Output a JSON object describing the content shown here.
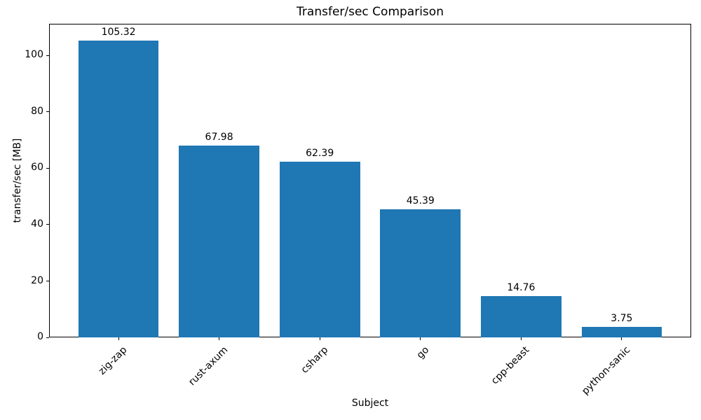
{
  "chart_data": {
    "type": "bar",
    "title": "Transfer/sec Comparison",
    "xlabel": "Subject",
    "ylabel": "transfer/sec [MB]",
    "categories": [
      "zig-zap",
      "rust-axum",
      "csharp",
      "go",
      "cpp-beast",
      "python-sanic"
    ],
    "values": [
      105.32,
      67.98,
      62.39,
      45.39,
      14.76,
      3.75
    ],
    "bar_labels": [
      "105.32",
      "67.98",
      "62.39",
      "45.39",
      "14.76",
      "3.75"
    ],
    "yticks": [
      0,
      20,
      40,
      60,
      80,
      100
    ],
    "ylim": [
      0,
      111.25
    ],
    "xtick_rotation_deg": 45,
    "bar_color": "#1f77b4",
    "text_color": "#000000",
    "grid": false,
    "legend_position": "none"
  }
}
